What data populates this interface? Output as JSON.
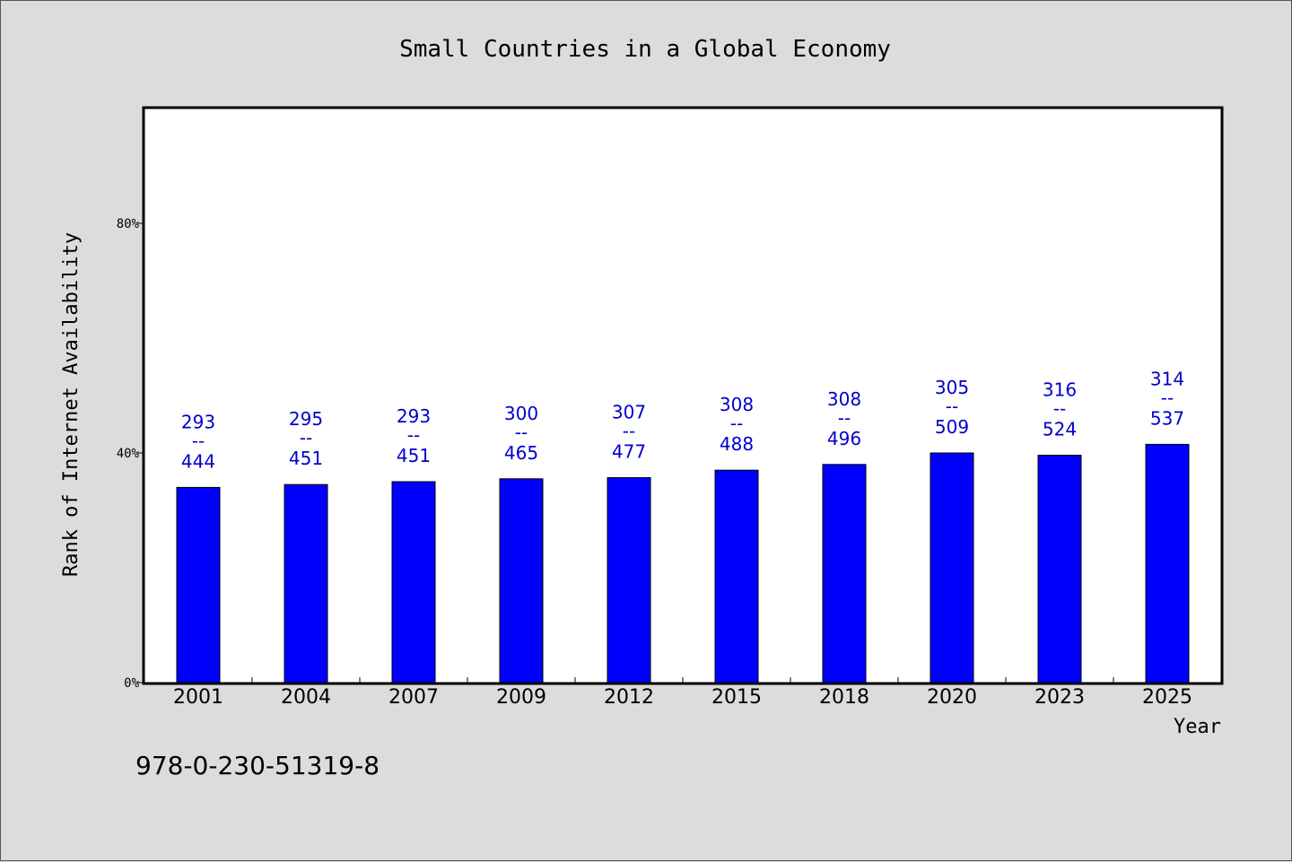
{
  "chart_data": {
    "type": "bar",
    "title": "Small Countries in a Global Economy",
    "xlabel": "Year",
    "ylabel": "Rank of Internet Availability",
    "categories": [
      "2001",
      "2004",
      "2007",
      "2009",
      "2012",
      "2015",
      "2018",
      "2020",
      "2023",
      "2025"
    ],
    "values": [
      0.34,
      0.345,
      0.35,
      0.355,
      0.357,
      0.37,
      0.38,
      0.4,
      0.396,
      0.415
    ],
    "data_labels": [
      {
        "top": "293",
        "sep": "--",
        "bottom": "444"
      },
      {
        "top": "295",
        "sep": "--",
        "bottom": "451"
      },
      {
        "top": "293",
        "sep": "--",
        "bottom": "451"
      },
      {
        "top": "300",
        "sep": "--",
        "bottom": "465"
      },
      {
        "top": "307",
        "sep": "--",
        "bottom": "477"
      },
      {
        "top": "308",
        "sep": "--",
        "bottom": "488"
      },
      {
        "top": "308",
        "sep": "--",
        "bottom": "496"
      },
      {
        "top": "305",
        "sep": "--",
        "bottom": "509"
      },
      {
        "top": "316",
        "sep": "--",
        "bottom": "524"
      },
      {
        "top": "314",
        "sep": "--",
        "bottom": "537"
      }
    ],
    "ylim": [
      0,
      1.0
    ],
    "yticks": [
      {
        "value": 0,
        "label": "0%"
      },
      {
        "value": 0.4,
        "label": "40%"
      },
      {
        "value": 0.8,
        "label": "80%"
      }
    ],
    "bar_color": "#0000ff",
    "label_color": "#0000cc",
    "grid": false,
    "legend": "none"
  },
  "footer": {
    "code": "978-0-230-51319-8"
  }
}
